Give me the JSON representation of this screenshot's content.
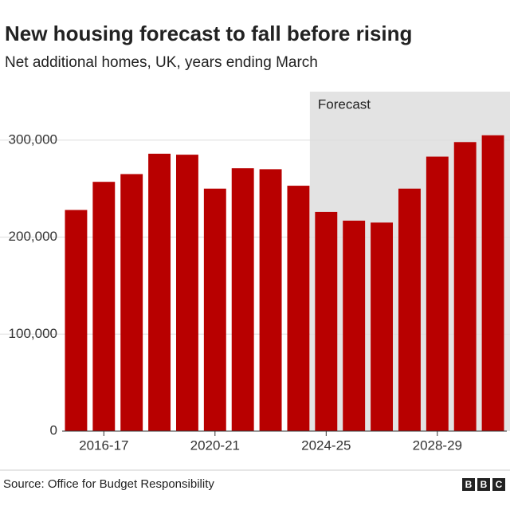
{
  "chart_data": {
    "type": "bar",
    "title": "New housing forecast to fall before rising",
    "subtitle": "Net additional homes, UK, years ending March",
    "categories": [
      null,
      "2016-17",
      null,
      null,
      null,
      "2020-21",
      null,
      null,
      null,
      "2024-25",
      null,
      null,
      null,
      "2028-29",
      null,
      null
    ],
    "values": [
      228000,
      257000,
      265000,
      286000,
      285000,
      250000,
      271000,
      270000,
      253000,
      226000,
      217000,
      215000,
      250000,
      283000,
      298000,
      305000
    ],
    "color": "#b80000",
    "ylim": [
      0,
      350000
    ],
    "yticks": [
      0,
      {
        "value": 100000,
        "label": "100,000"
      },
      {
        "value": 200000,
        "label": "200,000"
      },
      {
        "value": 300000,
        "label": "300,000"
      }
    ],
    "grid": true,
    "forecast_label": "Forecast",
    "forecast_start": "2024-25",
    "source": "Source: Office for Budget Responsibility",
    "logo": [
      "B",
      "B",
      "C"
    ]
  }
}
